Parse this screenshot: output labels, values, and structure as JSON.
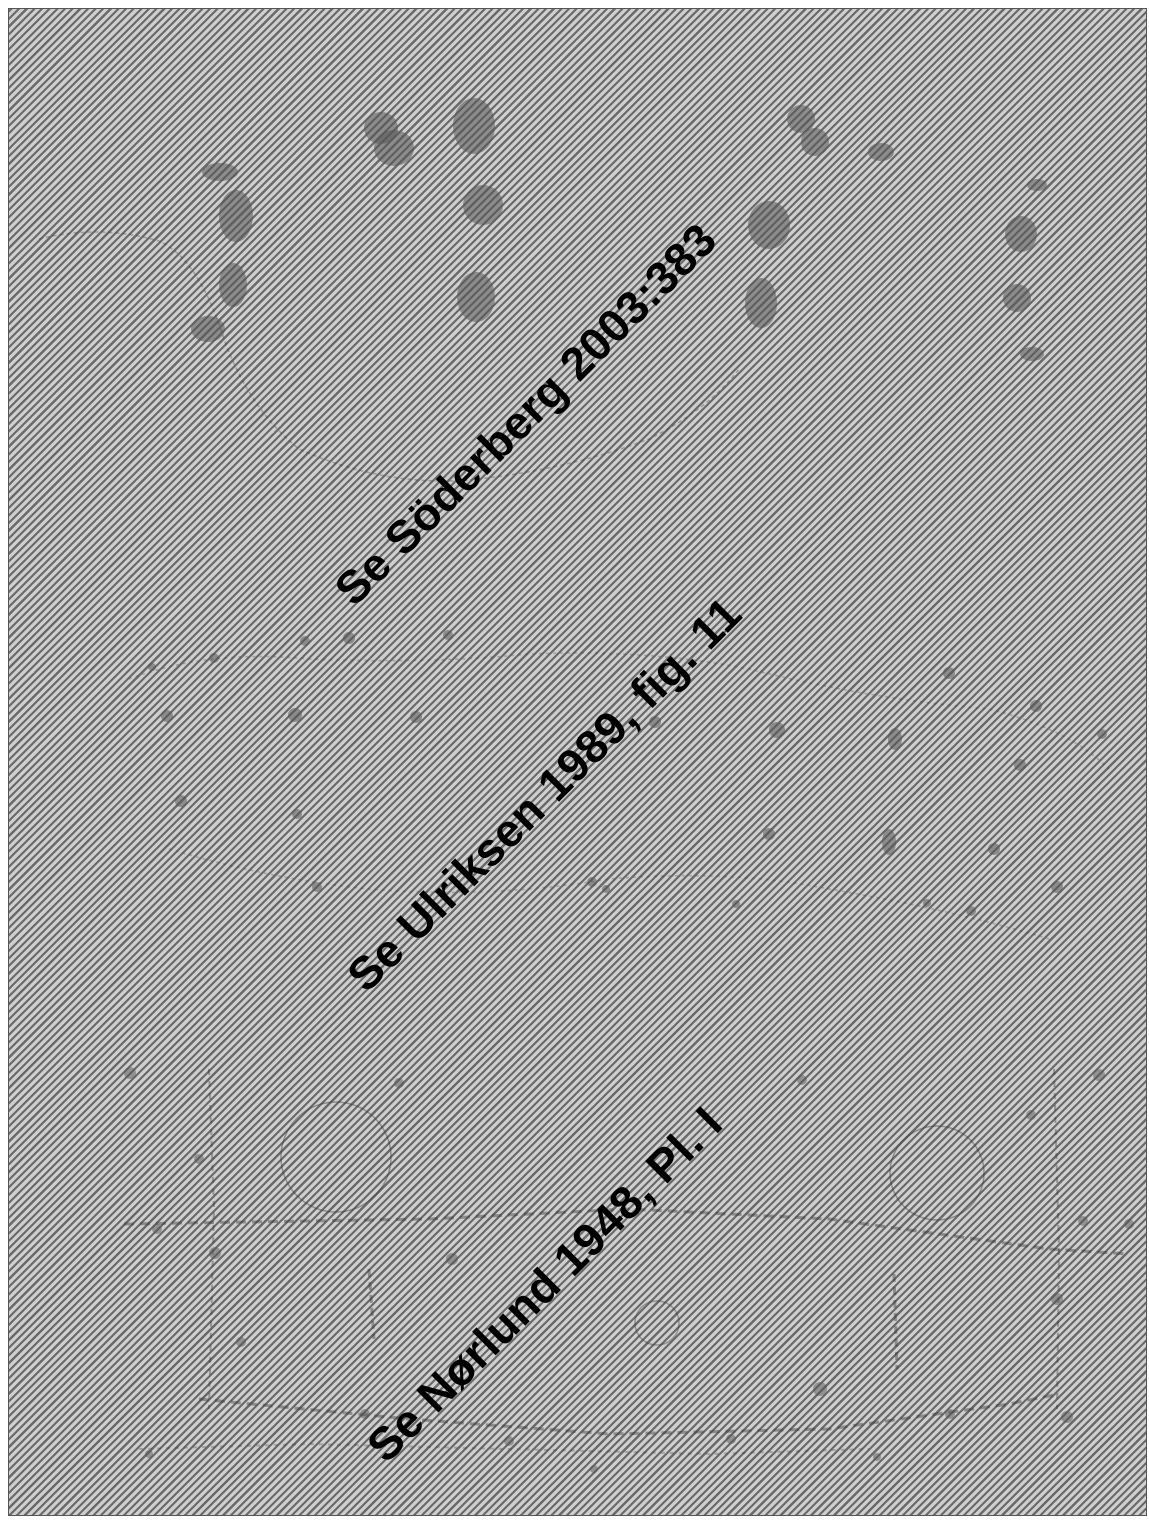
{
  "captions": [
    "Se Söderberg 2003:383",
    "Se Ulriksen 1989, fig. 11",
    "Se Nørlund 1948, Pl. I"
  ],
  "colors": {
    "hatch_light": "#cfcfcf",
    "hatch_dark": "#6a6a6a",
    "feature_fill": "#555555",
    "text": "#000000"
  }
}
